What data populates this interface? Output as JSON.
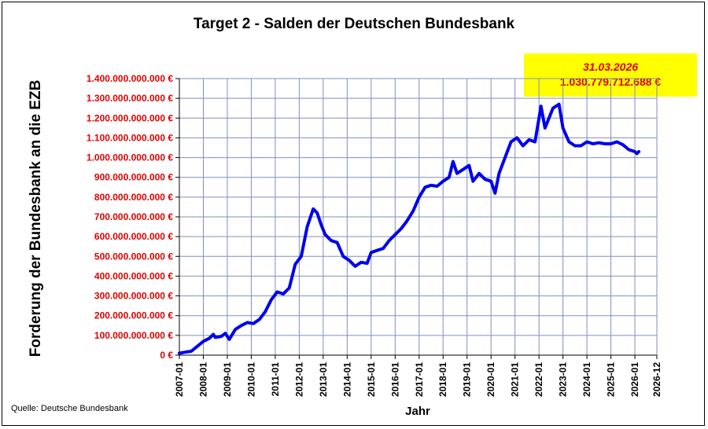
{
  "chart_data": {
    "type": "line",
    "title": "Target 2 - Salden der Deutschen Bundesbank",
    "xlabel": "Jahr",
    "ylabel": "Forderung der Bundesbank an die EZB",
    "source": "Quelle: Deutsche Bundesbank",
    "annotation": {
      "date": "31.03.2026",
      "value": "1.030.779.712.688 €"
    },
    "ylim": [
      0,
      1400000000000
    ],
    "yticks": [
      {
        "value": 0,
        "label": "0 €"
      },
      {
        "value": 100000000000,
        "label": "100.000.000.000 €"
      },
      {
        "value": 200000000000,
        "label": "200.000.000.000 €"
      },
      {
        "value": 300000000000,
        "label": "300.000.000.000 €"
      },
      {
        "value": 400000000000,
        "label": "400.000.000.000 €"
      },
      {
        "value": 500000000000,
        "label": "500.000.000.000 €"
      },
      {
        "value": 600000000000,
        "label": "600.000.000.000 €"
      },
      {
        "value": 700000000000,
        "label": "700.000.000.000 €"
      },
      {
        "value": 800000000000,
        "label": "800.000.000.000 €"
      },
      {
        "value": 900000000000,
        "label": "900.000.000.000 €"
      },
      {
        "value": 1000000000000,
        "label": "1.000.000.000.000 €"
      },
      {
        "value": 1100000000000,
        "label": "1.100.000.000.000 €"
      },
      {
        "value": 1200000000000,
        "label": "1.200.000.000.000 €"
      },
      {
        "value": 1300000000000,
        "label": "1.300.000.000.000 €"
      },
      {
        "value": 1400000000000,
        "label": "1.400.000.000.000 €"
      }
    ],
    "xlim": [
      "2007-01",
      "2026-12"
    ],
    "xticks": [
      "2007-01",
      "2008-01",
      "2009-01",
      "2010-01",
      "2011-01",
      "2012-01",
      "2013-01",
      "2014-01",
      "2015-01",
      "2016-01",
      "2017-01",
      "2018-01",
      "2019-01",
      "2020-01",
      "2021-01",
      "2022-01",
      "2023-01",
      "2024-01",
      "2025-01",
      "2026-01",
      "2026-12"
    ],
    "grid": true,
    "series": [
      {
        "color": "#0000ee",
        "points": [
          [
            "2007-01",
            10000000000
          ],
          [
            "2007-04",
            15000000000
          ],
          [
            "2007-07",
            20000000000
          ],
          [
            "2007-10",
            45000000000
          ],
          [
            "2008-01",
            70000000000
          ],
          [
            "2008-04",
            85000000000
          ],
          [
            "2008-06",
            105000000000
          ],
          [
            "2008-07",
            90000000000
          ],
          [
            "2008-10",
            95000000000
          ],
          [
            "2008-12",
            110000000000
          ],
          [
            "2009-02",
            80000000000
          ],
          [
            "2009-05",
            130000000000
          ],
          [
            "2009-08",
            150000000000
          ],
          [
            "2009-11",
            165000000000
          ],
          [
            "2010-02",
            160000000000
          ],
          [
            "2010-05",
            180000000000
          ],
          [
            "2010-08",
            220000000000
          ],
          [
            "2010-11",
            280000000000
          ],
          [
            "2011-02",
            320000000000
          ],
          [
            "2011-05",
            310000000000
          ],
          [
            "2011-08",
            340000000000
          ],
          [
            "2011-11",
            460000000000
          ],
          [
            "2012-02",
            500000000000
          ],
          [
            "2012-05",
            650000000000
          ],
          [
            "2012-08",
            740000000000
          ],
          [
            "2012-10",
            720000000000
          ],
          [
            "2012-12",
            660000000000
          ],
          [
            "2013-02",
            610000000000
          ],
          [
            "2013-05",
            580000000000
          ],
          [
            "2013-08",
            570000000000
          ],
          [
            "2013-11",
            500000000000
          ],
          [
            "2014-02",
            480000000000
          ],
          [
            "2014-05",
            450000000000
          ],
          [
            "2014-08",
            470000000000
          ],
          [
            "2014-11",
            465000000000
          ],
          [
            "2015-01",
            520000000000
          ],
          [
            "2015-04",
            530000000000
          ],
          [
            "2015-07",
            540000000000
          ],
          [
            "2015-10",
            580000000000
          ],
          [
            "2016-01",
            610000000000
          ],
          [
            "2016-04",
            640000000000
          ],
          [
            "2016-07",
            680000000000
          ],
          [
            "2016-10",
            730000000000
          ],
          [
            "2017-01",
            800000000000
          ],
          [
            "2017-04",
            850000000000
          ],
          [
            "2017-07",
            860000000000
          ],
          [
            "2017-10",
            855000000000
          ],
          [
            "2018-01",
            880000000000
          ],
          [
            "2018-04",
            900000000000
          ],
          [
            "2018-06",
            980000000000
          ],
          [
            "2018-08",
            920000000000
          ],
          [
            "2018-11",
            940000000000
          ],
          [
            "2019-02",
            960000000000
          ],
          [
            "2019-04",
            880000000000
          ],
          [
            "2019-07",
            920000000000
          ],
          [
            "2019-10",
            890000000000
          ],
          [
            "2020-01",
            880000000000
          ],
          [
            "2020-03",
            820000000000
          ],
          [
            "2020-05",
            920000000000
          ],
          [
            "2020-08",
            1000000000000
          ],
          [
            "2020-11",
            1080000000000
          ],
          [
            "2021-02",
            1100000000000
          ],
          [
            "2021-05",
            1060000000000
          ],
          [
            "2021-08",
            1090000000000
          ],
          [
            "2021-11",
            1080000000000
          ],
          [
            "2022-01",
            1200000000000
          ],
          [
            "2022-02",
            1260000000000
          ],
          [
            "2022-04",
            1150000000000
          ],
          [
            "2022-06",
            1200000000000
          ],
          [
            "2022-08",
            1250000000000
          ],
          [
            "2022-11",
            1270000000000
          ],
          [
            "2023-01",
            1150000000000
          ],
          [
            "2023-04",
            1080000000000
          ],
          [
            "2023-07",
            1060000000000
          ],
          [
            "2023-10",
            1060000000000
          ],
          [
            "2024-01",
            1080000000000
          ],
          [
            "2024-04",
            1070000000000
          ],
          [
            "2024-07",
            1075000000000
          ],
          [
            "2024-10",
            1070000000000
          ],
          [
            "2025-01",
            1070000000000
          ],
          [
            "2025-04",
            1080000000000
          ],
          [
            "2025-07",
            1065000000000
          ],
          [
            "2025-10",
            1040000000000
          ],
          [
            "2026-01",
            1030000000000
          ],
          [
            "2026-02",
            1020000000000
          ],
          [
            "2026-03",
            1030000000000
          ]
        ]
      }
    ]
  }
}
